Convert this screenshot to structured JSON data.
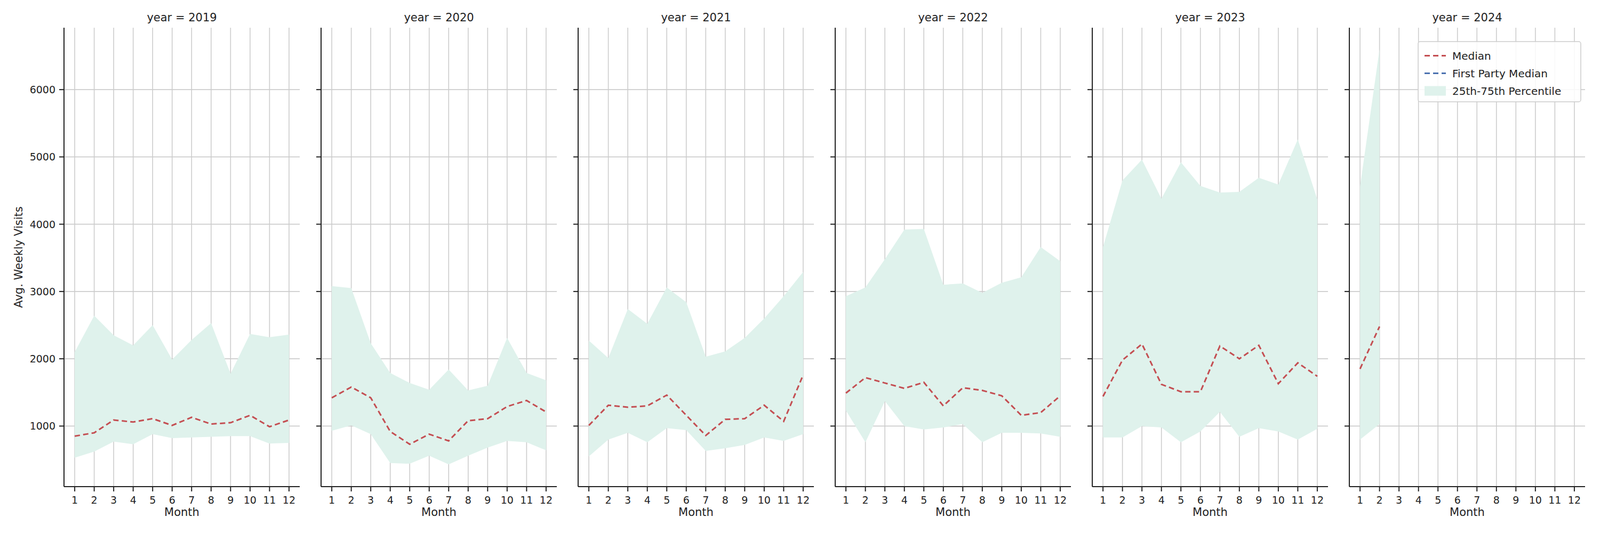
{
  "chart_data": [
    {
      "type": "line",
      "title": "year = 2019",
      "x_label": "Month",
      "y_label": "Avg. Weekly Visits",
      "x": [
        1,
        2,
        3,
        4,
        5,
        6,
        7,
        8,
        9,
        10,
        11,
        12
      ],
      "xlim": [
        0.45,
        12.55
      ],
      "xticks": [
        1,
        2,
        3,
        4,
        5,
        6,
        7,
        8,
        9,
        10,
        11,
        12
      ],
      "ylim": [
        100,
        6920
      ],
      "yticks": [
        1000,
        2000,
        3000,
        4000,
        5000,
        6000
      ],
      "grid": true,
      "series": [
        {
          "name": "Median",
          "type": "line",
          "color": "#c44e52",
          "line_style": "dashed",
          "values": [
            850,
            900,
            1090,
            1060,
            1110,
            1010,
            1130,
            1030,
            1050,
            1160,
            990,
            1090
          ]
        },
        {
          "name": "First Party Median",
          "type": "line",
          "color": "#4c72b0",
          "line_style": "dashed",
          "values": [
            null,
            null,
            null,
            null,
            null,
            null,
            null,
            null,
            null,
            null,
            null,
            null
          ]
        },
        {
          "name": "25th-75th Percentile",
          "type": "band",
          "color": "#dff2ec",
          "low": [
            530,
            620,
            770,
            730,
            880,
            820,
            830,
            840,
            850,
            850,
            740,
            750
          ],
          "high": [
            2100,
            2640,
            2350,
            2200,
            2500,
            1990,
            2280,
            2530,
            1780,
            2370,
            2320,
            2360
          ]
        }
      ]
    },
    {
      "type": "line",
      "title": "year = 2020",
      "x_label": "Month",
      "tick_labels": "x",
      "x": [
        1,
        2,
        3,
        4,
        5,
        6,
        7,
        8,
        9,
        10,
        11,
        12
      ],
      "xlim": [
        0.45,
        12.55
      ],
      "xticks": [
        1,
        2,
        3,
        4,
        5,
        6,
        7,
        8,
        9,
        10,
        11,
        12
      ],
      "ylim": [
        100,
        6920
      ],
      "yticks": [
        1000,
        2000,
        3000,
        4000,
        5000,
        6000
      ],
      "grid": true,
      "series": [
        {
          "name": "Median",
          "type": "line",
          "color": "#c44e52",
          "line_style": "dashed",
          "values": [
            1420,
            1580,
            1420,
            920,
            730,
            880,
            780,
            1080,
            1110,
            1290,
            1380,
            1210
          ]
        },
        {
          "name": "First Party Median",
          "type": "line",
          "color": "#4c72b0",
          "line_style": "dashed",
          "values": [
            null,
            null,
            null,
            null,
            null,
            null,
            null,
            null,
            null,
            null,
            null,
            null
          ]
        },
        {
          "name": "25th-75th Percentile",
          "type": "band",
          "color": "#dff2ec",
          "low": [
            930,
            1010,
            880,
            450,
            440,
            560,
            430,
            560,
            680,
            780,
            760,
            640
          ],
          "high": [
            3080,
            3050,
            2230,
            1790,
            1640,
            1540,
            1840,
            1530,
            1600,
            2310,
            1790,
            1680
          ]
        }
      ]
    },
    {
      "type": "line",
      "title": "year = 2021",
      "x_label": "Month",
      "tick_labels": "x",
      "x": [
        1,
        2,
        3,
        4,
        5,
        6,
        7,
        8,
        9,
        10,
        11,
        12
      ],
      "xlim": [
        0.45,
        12.55
      ],
      "xticks": [
        1,
        2,
        3,
        4,
        5,
        6,
        7,
        8,
        9,
        10,
        11,
        12
      ],
      "ylim": [
        100,
        6920
      ],
      "yticks": [
        1000,
        2000,
        3000,
        4000,
        5000,
        6000
      ],
      "grid": true,
      "series": [
        {
          "name": "Median",
          "type": "line",
          "color": "#c44e52",
          "line_style": "dashed",
          "values": [
            1010,
            1310,
            1280,
            1300,
            1460,
            1160,
            860,
            1100,
            1110,
            1310,
            1070,
            1760
          ]
        },
        {
          "name": "First Party Median",
          "type": "line",
          "color": "#4c72b0",
          "line_style": "dashed",
          "values": [
            null,
            null,
            null,
            null,
            null,
            null,
            null,
            null,
            null,
            null,
            null,
            null
          ]
        },
        {
          "name": "25th-75th Percentile",
          "type": "band",
          "color": "#dff2ec",
          "low": [
            550,
            800,
            900,
            760,
            970,
            940,
            630,
            670,
            720,
            830,
            780,
            880
          ],
          "high": [
            2270,
            2010,
            2740,
            2520,
            3060,
            2840,
            2030,
            2110,
            2310,
            2600,
            2930,
            3290
          ]
        }
      ]
    },
    {
      "type": "line",
      "title": "year = 2022",
      "x_label": "Month",
      "tick_labels": "x",
      "x": [
        1,
        2,
        3,
        4,
        5,
        6,
        7,
        8,
        9,
        10,
        11,
        12
      ],
      "xlim": [
        0.45,
        12.55
      ],
      "xticks": [
        1,
        2,
        3,
        4,
        5,
        6,
        7,
        8,
        9,
        10,
        11,
        12
      ],
      "ylim": [
        100,
        6920
      ],
      "yticks": [
        1000,
        2000,
        3000,
        4000,
        5000,
        6000
      ],
      "grid": true,
      "series": [
        {
          "name": "Median",
          "type": "line",
          "color": "#c44e52",
          "line_style": "dashed",
          "values": [
            1490,
            1720,
            1640,
            1560,
            1650,
            1300,
            1570,
            1530,
            1450,
            1160,
            1200,
            1450
          ]
        },
        {
          "name": "First Party Median",
          "type": "line",
          "color": "#4c72b0",
          "line_style": "dashed",
          "values": [
            null,
            null,
            null,
            null,
            null,
            null,
            null,
            null,
            null,
            null,
            null,
            null
          ]
        },
        {
          "name": "25th-75th Percentile",
          "type": "band",
          "color": "#dff2ec",
          "low": [
            1230,
            760,
            1370,
            1000,
            950,
            980,
            1030,
            760,
            900,
            900,
            890,
            840
          ],
          "high": [
            2930,
            3060,
            3480,
            3920,
            3930,
            3100,
            3120,
            2980,
            3130,
            3210,
            3660,
            3450
          ]
        }
      ]
    },
    {
      "type": "line",
      "title": "year = 2023",
      "x_label": "Month",
      "tick_labels": "x",
      "x": [
        1,
        2,
        3,
        4,
        5,
        6,
        7,
        8,
        9,
        10,
        11,
        12
      ],
      "xlim": [
        0.45,
        12.55
      ],
      "xticks": [
        1,
        2,
        3,
        4,
        5,
        6,
        7,
        8,
        9,
        10,
        11,
        12
      ],
      "ylim": [
        100,
        6920
      ],
      "yticks": [
        1000,
        2000,
        3000,
        4000,
        5000,
        6000
      ],
      "grid": true,
      "series": [
        {
          "name": "Median",
          "type": "line",
          "color": "#c44e52",
          "line_style": "dashed",
          "values": [
            1440,
            1980,
            2220,
            1620,
            1510,
            1510,
            2190,
            2000,
            2200,
            1630,
            1940,
            1740
          ]
        },
        {
          "name": "First Party Median",
          "type": "line",
          "color": "#4c72b0",
          "line_style": "dashed",
          "values": [
            null,
            null,
            null,
            null,
            null,
            null,
            null,
            null,
            null,
            null,
            null,
            null
          ]
        },
        {
          "name": "25th-75th Percentile",
          "type": "band",
          "color": "#dff2ec",
          "low": [
            830,
            830,
            1000,
            980,
            760,
            920,
            1210,
            840,
            970,
            920,
            800,
            960
          ],
          "high": [
            3660,
            4650,
            4960,
            4380,
            4920,
            4570,
            4470,
            4480,
            4690,
            4590,
            5260,
            4370
          ]
        }
      ]
    },
    {
      "type": "line",
      "title": "year = 2024",
      "x_label": "Month",
      "tick_labels": "x",
      "legend": "upper right",
      "x": [
        1,
        2,
        3,
        4,
        5,
        6,
        7,
        8,
        9,
        10,
        11,
        12
      ],
      "xlim": [
        0.45,
        12.55
      ],
      "xticks": [
        1,
        2,
        3,
        4,
        5,
        6,
        7,
        8,
        9,
        10,
        11,
        12
      ],
      "ylim": [
        100,
        6920
      ],
      "yticks": [
        1000,
        2000,
        3000,
        4000,
        5000,
        6000
      ],
      "grid": true,
      "series": [
        {
          "name": "Median",
          "type": "line",
          "color": "#c44e52",
          "line_style": "dashed",
          "values": [
            1850,
            2480,
            null,
            null,
            null,
            null,
            null,
            null,
            null,
            null,
            null,
            null
          ]
        },
        {
          "name": "First Party Median",
          "type": "line",
          "color": "#4c72b0",
          "line_style": "dashed",
          "values": [
            null,
            null,
            null,
            null,
            null,
            null,
            null,
            null,
            null,
            null,
            null,
            null
          ]
        },
        {
          "name": "25th-75th Percentile",
          "type": "band",
          "color": "#dff2ec",
          "low": [
            800,
            1030,
            null,
            null,
            null,
            null,
            null,
            null,
            null,
            null,
            null,
            null
          ],
          "high": [
            4560,
            6600,
            null,
            null,
            null,
            null,
            null,
            null,
            null,
            null,
            null,
            null
          ]
        }
      ]
    }
  ]
}
